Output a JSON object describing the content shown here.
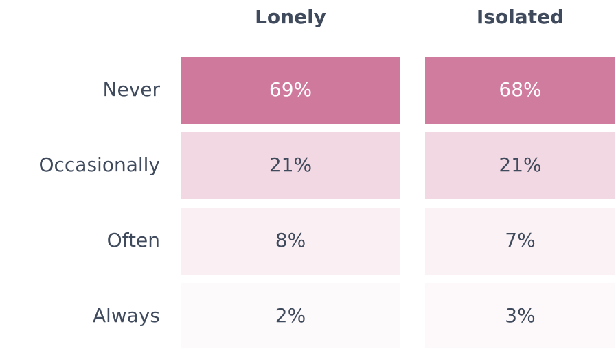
{
  "chart_data": {
    "type": "heatmap",
    "columns": [
      "Lonely",
      "Isolated"
    ],
    "rows": [
      "Never",
      "Occasionally",
      "Often",
      "Always"
    ],
    "values": [
      [
        69,
        68
      ],
      [
        21,
        21
      ],
      [
        8,
        7
      ],
      [
        2,
        3
      ]
    ],
    "value_labels": [
      [
        "69%",
        "68%"
      ],
      [
        "21%",
        "21%"
      ],
      [
        "8%",
        "7%"
      ],
      [
        "2%",
        "3%"
      ]
    ],
    "color": "#cf7a9c"
  }
}
